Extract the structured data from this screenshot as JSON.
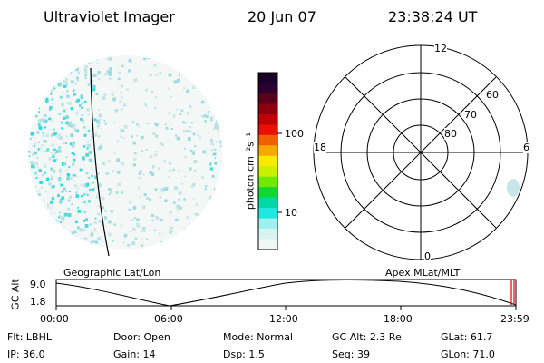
{
  "header": {
    "title": "Ultraviolet Imager",
    "date": "20 Jun 07",
    "time": "23:38:24 UT"
  },
  "colorbar": {
    "unit_label": "photon cm⁻²s⁻¹",
    "ticks": [
      "100",
      "10"
    ],
    "colors_top_to_bottom": [
      "#1a0026",
      "#2b0030",
      "#5a0018",
      "#8c0010",
      "#c00008",
      "#e81000",
      "#f06000",
      "#f7a800",
      "#f6ea00",
      "#c8f000",
      "#70e800",
      "#10d830",
      "#00d8a8",
      "#20e8e0",
      "#a0f0f0",
      "#d8f4f0",
      "#f0f8f6"
    ]
  },
  "polar_grid": {
    "mlt_labels": [
      "12",
      "18",
      "6",
      "0"
    ],
    "lat_labels": [
      "60",
      "70",
      "80"
    ]
  },
  "timeline": {
    "title_left": "Geographic Lat/Lon",
    "title_right": "Apex MLat/MLT",
    "y_label": "GC Alt",
    "y_ticks": [
      "9.0",
      "1.8"
    ],
    "x_ticks": [
      "00:00",
      "06:00",
      "12:00",
      "18:00",
      "23:59"
    ]
  },
  "status": {
    "row1": [
      {
        "key": "Flt:",
        "value": "LBHL"
      },
      {
        "key": "Door:",
        "value": "Open"
      },
      {
        "key": "Mode:",
        "value": "Normal"
      },
      {
        "key": "GC Alt:",
        "value": "2.3 Re"
      },
      {
        "key": "GLat:",
        "value": "61.7"
      }
    ],
    "row2": [
      {
        "key": "IP:",
        "value": "36.0"
      },
      {
        "key": "Gain:",
        "value": "14"
      },
      {
        "key": "Dsp:",
        "value": "1.5"
      },
      {
        "key": "Seq:",
        "value": "39"
      },
      {
        "key": "GLon:",
        "value": "71.0"
      }
    ]
  }
}
